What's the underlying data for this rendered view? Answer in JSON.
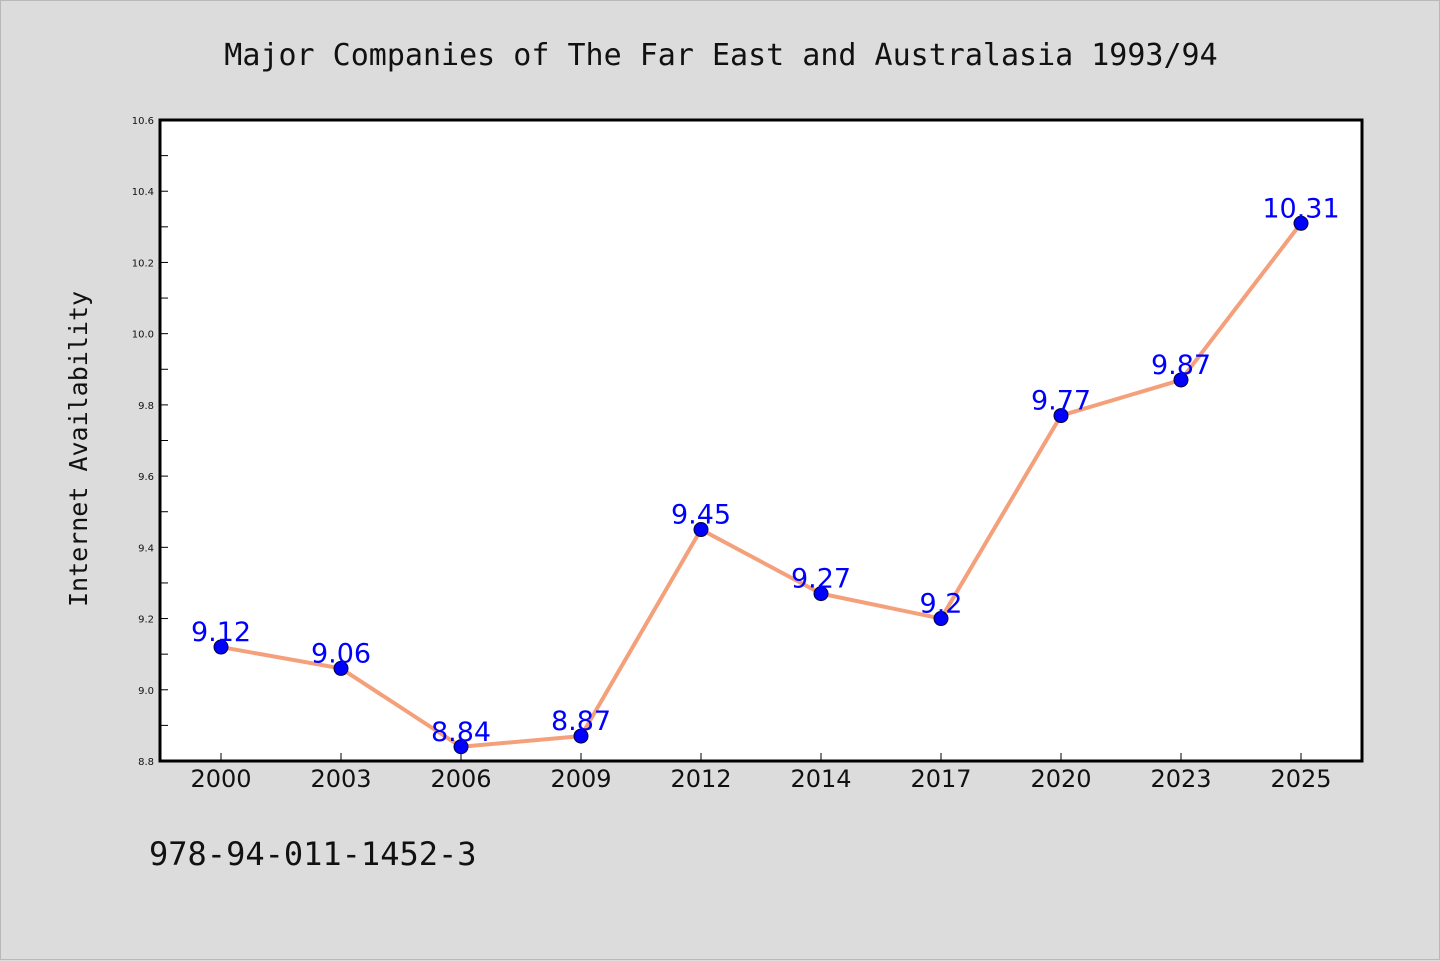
{
  "chart_data": {
    "type": "line",
    "title": "Major Companies of The Far East and Australasia 1993/94",
    "xlabel": "",
    "ylabel": "Internet Availability",
    "categories": [
      "2000",
      "2003",
      "2006",
      "2009",
      "2012",
      "2014",
      "2017",
      "2020",
      "2023",
      "2025"
    ],
    "series": [
      {
        "values": [
          9.12,
          9.06,
          8.84,
          8.87,
          9.45,
          9.27,
          9.2,
          9.77,
          9.87,
          10.31
        ],
        "data_labels": [
          "9.12",
          "9.06",
          "8.84",
          "8.87",
          "9.45",
          "9.27",
          "9.2",
          "9.77",
          "9.87",
          "10.31"
        ],
        "line_color": "#f4a07a",
        "marker_color": "#0000ff"
      }
    ],
    "ylim": [
      8.8,
      10.6
    ],
    "yticks": [
      "8.8",
      "9.0",
      "9.2",
      "9.4",
      "9.6",
      "9.8",
      "10.0",
      "10.2",
      "10.4",
      "10.6"
    ],
    "grid": false,
    "legend": "none"
  },
  "footer_text": "978-94-011-1452-3",
  "colors": {
    "background": "#dcdcdc",
    "plot_background": "#ffffff",
    "line": "#f4a07a",
    "marker": "#0000ff",
    "data_label": "#0000ff"
  }
}
